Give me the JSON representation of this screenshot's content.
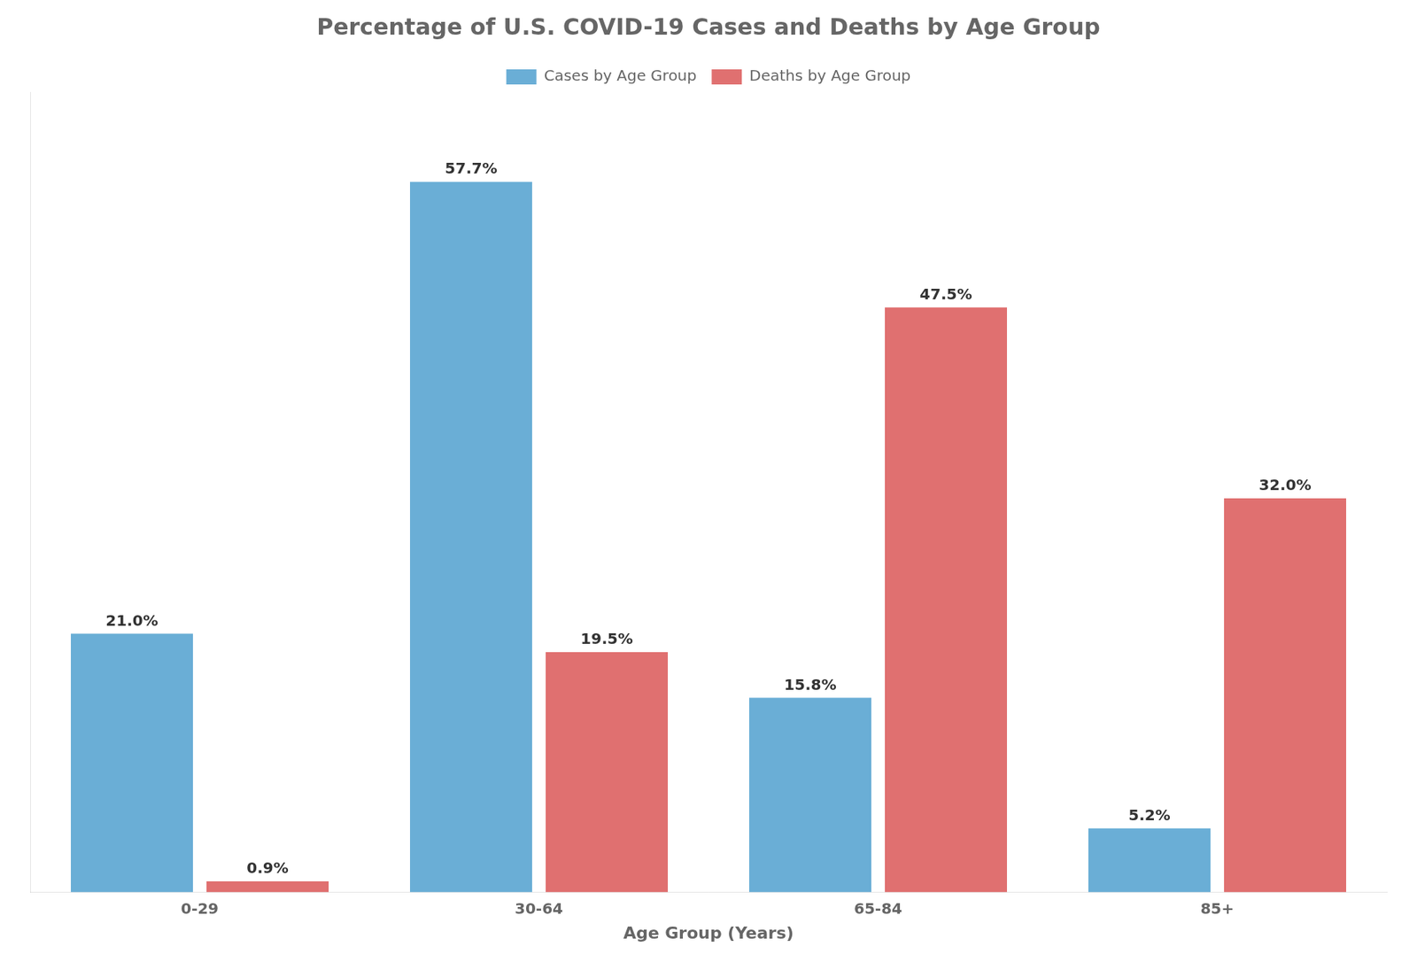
{
  "chart_data": {
    "type": "bar",
    "title": "Percentage of U.S. COVID-19 Cases and Deaths by Age Group",
    "xlabel": "Age Group (Years)",
    "categories": [
      "0-29",
      "30-64",
      "65-84",
      "85+"
    ],
    "series": [
      {
        "name": "Cases by Age Group",
        "color": "#6aaed6",
        "values": [
          21.0,
          57.7,
          15.8,
          5.2
        ],
        "value_labels": [
          "21.0%",
          "57.7%",
          "15.8%",
          "5.2%"
        ]
      },
      {
        "name": "Deaths by Age Group",
        "color": "#e07070",
        "values": [
          0.9,
          19.5,
          47.5,
          32.0
        ],
        "value_labels": [
          "0.9%",
          "19.5%",
          "47.5%",
          "32.0%"
        ]
      }
    ],
    "ylim": [
      0,
      65
    ],
    "grid": false,
    "legend": "top",
    "data_labels": true,
    "tick_labels": "x"
  }
}
